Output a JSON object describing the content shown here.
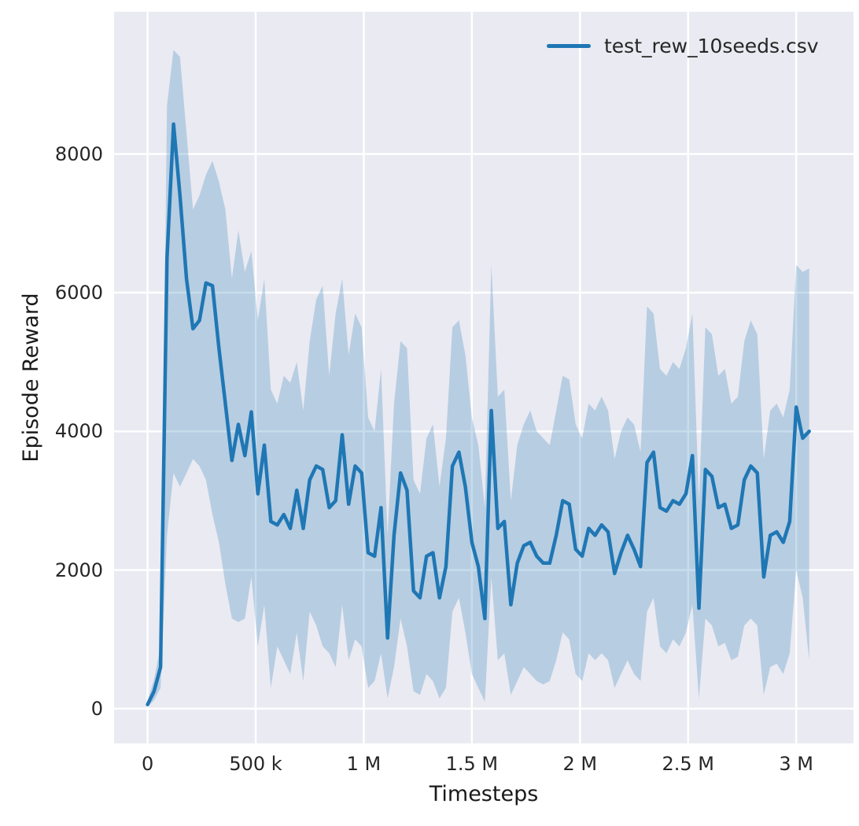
{
  "chart_data": {
    "type": "line",
    "title": "",
    "xlabel": "Timesteps",
    "ylabel": "Episode Reward",
    "legend_position": "upper right",
    "grid": true,
    "panel_bg": "#eaeaf2",
    "grid_color": "#ffffff",
    "line_color": "#1f77b4",
    "band_color": "#1f77b4",
    "band_opacity": 0.25,
    "text_color": "#262626",
    "xlim": [
      -155000,
      3265000
    ],
    "ylim": [
      -500,
      10050
    ],
    "x_ticks": [
      {
        "value": 0,
        "label": "0"
      },
      {
        "value": 500000,
        "label": "500 k"
      },
      {
        "value": 1000000,
        "label": "1 M"
      },
      {
        "value": 1500000,
        "label": "1.5 M"
      },
      {
        "value": 2000000,
        "label": "2 M"
      },
      {
        "value": 2500000,
        "label": "2.5 M"
      },
      {
        "value": 3000000,
        "label": "3 M"
      }
    ],
    "y_ticks": [
      {
        "value": 0,
        "label": "0"
      },
      {
        "value": 2000,
        "label": "2000"
      },
      {
        "value": 4000,
        "label": "4000"
      },
      {
        "value": 6000,
        "label": "6000"
      },
      {
        "value": 8000,
        "label": "8000"
      }
    ],
    "series": [
      {
        "name": "test_rew_10seeds.csv",
        "x": [
          0,
          30000,
          60000,
          90000,
          120000,
          150000,
          180000,
          210000,
          240000,
          270000,
          300000,
          330000,
          360000,
          390000,
          420000,
          450000,
          480000,
          510000,
          540000,
          570000,
          600000,
          630000,
          660000,
          690000,
          720000,
          750000,
          780000,
          810000,
          840000,
          870000,
          900000,
          930000,
          960000,
          990000,
          1020000,
          1050000,
          1080000,
          1110000,
          1140000,
          1170000,
          1200000,
          1230000,
          1260000,
          1290000,
          1320000,
          1350000,
          1380000,
          1410000,
          1440000,
          1470000,
          1500000,
          1530000,
          1560000,
          1590000,
          1620000,
          1650000,
          1680000,
          1710000,
          1740000,
          1770000,
          1800000,
          1830000,
          1860000,
          1890000,
          1920000,
          1950000,
          1980000,
          2010000,
          2040000,
          2070000,
          2100000,
          2130000,
          2160000,
          2190000,
          2220000,
          2250000,
          2280000,
          2310000,
          2340000,
          2370000,
          2400000,
          2430000,
          2460000,
          2490000,
          2520000,
          2550000,
          2580000,
          2610000,
          2640000,
          2670000,
          2700000,
          2730000,
          2760000,
          2790000,
          2820000,
          2850000,
          2880000,
          2910000,
          2940000,
          2970000,
          3000000,
          3030000,
          3060000
        ],
        "mean": [
          60,
          250,
          600,
          6500,
          8430,
          7400,
          6200,
          5480,
          5600,
          6140,
          6100,
          5200,
          4400,
          3580,
          4100,
          3650,
          4280,
          3100,
          3800,
          2700,
          2650,
          2800,
          2600,
          3150,
          2600,
          3300,
          3500,
          3450,
          2900,
          3000,
          3950,
          2950,
          3500,
          3400,
          2250,
          2200,
          2900,
          1020,
          2500,
          3400,
          3150,
          1700,
          1600,
          2200,
          2250,
          1600,
          2050,
          3500,
          3700,
          3200,
          2400,
          2050,
          1300,
          4300,
          2600,
          2700,
          1500,
          2100,
          2350,
          2400,
          2200,
          2100,
          2100,
          2500,
          3000,
          2950,
          2300,
          2200,
          2600,
          2500,
          2650,
          2550,
          1950,
          2250,
          2500,
          2300,
          2050,
          3550,
          3700,
          2900,
          2850,
          3000,
          2950,
          3100,
          3650,
          1450,
          3450,
          3350,
          2900,
          2950,
          2600,
          2650,
          3300,
          3500,
          3400,
          1900,
          2500,
          2550,
          2400,
          2700,
          4350,
          3900,
          4000
        ],
        "lower": [
          30,
          120,
          300,
          2500,
          3400,
          3200,
          3400,
          3600,
          3500,
          3300,
          2800,
          2400,
          1800,
          1300,
          1250,
          1300,
          1900,
          900,
          1500,
          300,
          900,
          700,
          500,
          1100,
          400,
          1400,
          1200,
          900,
          800,
          600,
          1500,
          700,
          1000,
          900,
          300,
          400,
          800,
          150,
          600,
          1300,
          900,
          250,
          200,
          500,
          400,
          150,
          300,
          1400,
          1600,
          1100,
          500,
          300,
          100,
          1900,
          700,
          800,
          200,
          400,
          600,
          500,
          400,
          350,
          400,
          700,
          1100,
          1000,
          500,
          400,
          800,
          700,
          800,
          700,
          300,
          500,
          700,
          500,
          400,
          1400,
          1600,
          900,
          800,
          1000,
          900,
          1100,
          1500,
          150,
          1300,
          1200,
          900,
          950,
          700,
          750,
          1200,
          1300,
          1200,
          200,
          600,
          650,
          500,
          800,
          2000,
          1600,
          700
        ],
        "upper": [
          120,
          420,
          900,
          8700,
          9500,
          9400,
          8300,
          7200,
          7400,
          7700,
          7900,
          7600,
          7200,
          6200,
          6900,
          6300,
          6600,
          5600,
          6200,
          4600,
          4400,
          4800,
          4700,
          5000,
          4300,
          5300,
          5900,
          6100,
          4800,
          5700,
          6200,
          5100,
          5700,
          5500,
          4200,
          4000,
          4900,
          2500,
          4400,
          5300,
          5200,
          3300,
          3100,
          3900,
          4100,
          3200,
          3900,
          5500,
          5600,
          5100,
          4200,
          3800,
          2900,
          6400,
          4500,
          4600,
          3000,
          3800,
          4100,
          4300,
          4000,
          3900,
          3800,
          4300,
          4800,
          4750,
          4100,
          3900,
          4400,
          4300,
          4500,
          4300,
          3600,
          4000,
          4200,
          4100,
          3700,
          5800,
          5700,
          4900,
          4800,
          5000,
          4900,
          5200,
          5700,
          3000,
          5500,
          5400,
          4800,
          4900,
          4400,
          4500,
          5300,
          5600,
          5400,
          3600,
          4300,
          4400,
          4200,
          4600,
          6400,
          6300,
          6350
        ]
      }
    ]
  }
}
